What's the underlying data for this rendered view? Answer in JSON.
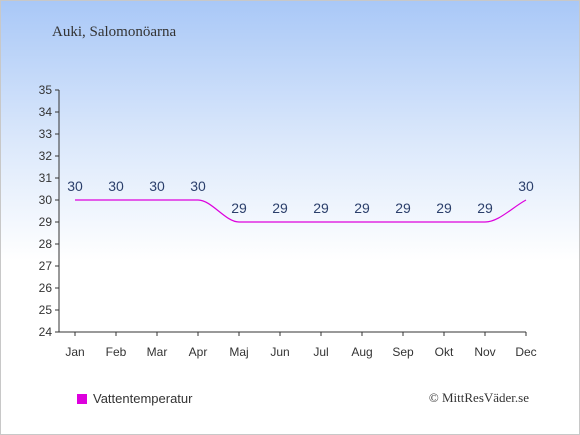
{
  "header": {
    "title": "Auki, Salomonöarna"
  },
  "colors": {
    "line": "#dd00dd",
    "axis": "#333333",
    "label": "#2b3f6b"
  },
  "chart_data": {
    "type": "line",
    "title": "Auki, Salomonöarna",
    "xlabel": "",
    "ylabel": "",
    "ylim": [
      24,
      35
    ],
    "yticks": [
      24,
      25,
      26,
      27,
      28,
      29,
      30,
      31,
      32,
      33,
      34,
      35
    ],
    "categories": [
      "Jan",
      "Feb",
      "Mar",
      "Apr",
      "Maj",
      "Jun",
      "Jul",
      "Aug",
      "Sep",
      "Okt",
      "Nov",
      "Dec"
    ],
    "series": [
      {
        "name": "Vattentemperatur",
        "values": [
          30,
          30,
          30,
          30,
          29,
          29,
          29,
          29,
          29,
          29,
          29,
          30
        ]
      }
    ],
    "grid": false,
    "legend_position": "bottom-left"
  },
  "legend": {
    "label": "Vattentemperatur"
  },
  "footer": {
    "credit": "© MittResVäder.se"
  }
}
